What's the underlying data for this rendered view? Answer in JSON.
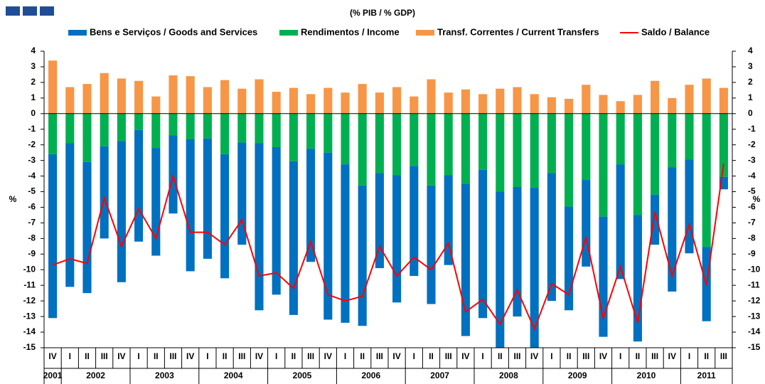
{
  "chart_data": {
    "type": "stacked_bar_line",
    "title": "(% PIB / % GDP)",
    "y_label": "%",
    "y2_label": "%",
    "categories": [
      "IV",
      "I",
      "II",
      "III",
      "IV",
      "I",
      "II",
      "III",
      "IV",
      "I",
      "II",
      "III",
      "IV",
      "I",
      "II",
      "III",
      "IV",
      "I",
      "II",
      "III",
      "IV",
      "I",
      "II",
      "III",
      "IV",
      "I",
      "II",
      "III",
      "IV",
      "I",
      "II",
      "III",
      "IV",
      "I",
      "II",
      "III",
      "IV",
      "I",
      "II",
      "III"
    ],
    "years": [
      "2001",
      "2002",
      "2003",
      "2004",
      "2005",
      "2006",
      "2007",
      "2008",
      "2009",
      "2010",
      "2011"
    ],
    "ylim": [
      -15,
      4
    ],
    "yticks": [
      -15,
      -14,
      -13,
      -12,
      -11,
      -10,
      -9,
      -8,
      -7,
      -6,
      -5,
      -4,
      -3,
      -2,
      -1,
      0,
      1,
      2,
      3,
      4
    ],
    "y2lim": [
      -15,
      4
    ],
    "y2ticks": [
      -15,
      -14,
      -13,
      -12,
      -11,
      -10,
      -9,
      -8,
      -7,
      -6,
      -5,
      -4,
      -3,
      -2,
      -1,
      0,
      1,
      2,
      3,
      4
    ],
    "series": [
      {
        "name": "Bens e Serviços / Goods and Services",
        "color": "#0070c0",
        "kind": "bar",
        "values": [
          -10.5,
          -9.2,
          -8.4,
          -5.9,
          -9.05,
          -7.15,
          -6.9,
          -5.0,
          -8.45,
          -7.7,
          -7.95,
          -6.55,
          -10.7,
          -9.45,
          -9.85,
          -7.25,
          -10.7,
          -10.15,
          -9.0,
          -6.1,
          -8.15,
          -7.05,
          -7.6,
          -5.75,
          -9.75,
          -9.5,
          -10.0,
          -8.3,
          -10.25,
          -8.2,
          -6.65,
          -5.55,
          -7.7,
          -7.35,
          -8.1,
          -3.2,
          -7.95,
          -6.0,
          -4.75,
          -0.8
        ]
      },
      {
        "name": "Rendimentos / Income",
        "color": "#00b050",
        "kind": "bar",
        "values": [
          -2.6,
          -1.9,
          -3.1,
          -2.1,
          -1.75,
          -1.05,
          -2.2,
          -1.4,
          -1.65,
          -1.6,
          -2.6,
          -1.85,
          -1.9,
          -2.15,
          -3.05,
          -2.25,
          -2.5,
          -3.25,
          -4.6,
          -3.8,
          -3.95,
          -3.35,
          -4.6,
          -3.95,
          -4.5,
          -3.6,
          -5.0,
          -4.7,
          -4.75,
          -3.8,
          -5.95,
          -4.25,
          -6.6,
          -3.25,
          -6.5,
          -5.2,
          -3.45,
          -2.95,
          -8.55,
          -4.05
        ]
      },
      {
        "name": "Transf. Correntes / Current Transfers",
        "color": "#f79646",
        "kind": "bar",
        "values": [
          3.4,
          1.7,
          1.9,
          2.6,
          2.25,
          2.1,
          1.1,
          2.45,
          2.4,
          1.7,
          2.15,
          1.6,
          2.2,
          1.4,
          1.65,
          1.25,
          1.65,
          1.35,
          1.9,
          1.35,
          1.7,
          1.1,
          2.2,
          1.35,
          1.55,
          1.25,
          1.6,
          1.7,
          1.25,
          1.05,
          0.95,
          1.85,
          1.2,
          0.8,
          1.2,
          2.1,
          1.0,
          1.85,
          2.25,
          1.65
        ]
      },
      {
        "name": "Saldo / Balance",
        "color": "#ff0000",
        "kind": "line",
        "values": [
          -9.7,
          -9.3,
          -9.6,
          -5.4,
          -8.5,
          -6.1,
          -8.0,
          -4.0,
          -7.6,
          -7.6,
          -8.4,
          -6.8,
          -10.4,
          -10.2,
          -11.2,
          -8.2,
          -11.6,
          -12.0,
          -11.7,
          -8.5,
          -10.4,
          -9.2,
          -10.0,
          -8.3,
          -12.7,
          -11.9,
          -13.5,
          -11.3,
          -13.8,
          -10.9,
          -11.6,
          -7.9,
          -13.1,
          -9.8,
          -13.4,
          -6.3,
          -10.4,
          -7.1,
          -11.0,
          -3.2
        ]
      }
    ]
  }
}
